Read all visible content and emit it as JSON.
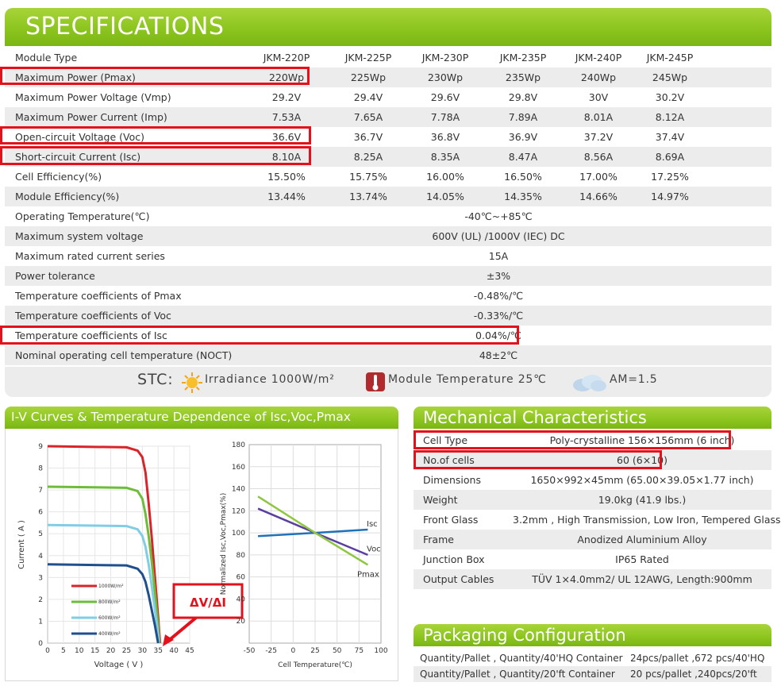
{
  "header": {
    "title": "SPECIFICATIONS"
  },
  "spec": {
    "models": {
      "label": "Module Type",
      "cols": [
        "JKM-220P",
        "JKM-225P",
        "JKM-230P",
        "JKM-235P",
        "JKM-240P",
        "JKM-245P"
      ]
    },
    "rows": [
      {
        "label": "Maximum Power (Pmax)",
        "cols": [
          "220Wp",
          "225Wp",
          "230Wp",
          "235Wp",
          "240Wp",
          "245Wp"
        ]
      },
      {
        "label": "Maximum Power Voltage (Vmp)",
        "cols": [
          "29.2V",
          "29.4V",
          "29.6V",
          "29.8V",
          "30V",
          "30.2V"
        ]
      },
      {
        "label": "Maximum Power Current (Imp)",
        "cols": [
          "7.53A",
          "7.65A",
          "7.78A",
          "7.89A",
          "8.01A",
          "8.12A"
        ]
      },
      {
        "label": "Open-circuit Voltage (Voc)",
        "cols": [
          "36.6V",
          "36.7V",
          "36.8V",
          "36.9V",
          "37.2V",
          "37.4V"
        ]
      },
      {
        "label": "Short-circuit Current (Isc)",
        "cols": [
          "8.10A",
          "8.25A",
          "8.35A",
          "8.47A",
          "8.56A",
          "8.69A"
        ]
      },
      {
        "label": "Cell Efficiency(%)",
        "cols": [
          "15.50%",
          "15.75%",
          "16.00%",
          "16.50%",
          "17.00%",
          "17.25%"
        ]
      },
      {
        "label": "Module Efficiency(%)",
        "cols": [
          "13.44%",
          "13.74%",
          "14.05%",
          "14.35%",
          "14.66%",
          "14.97%"
        ]
      }
    ],
    "merged": [
      {
        "label": "Operating Temperature(℃)",
        "value": "-40℃~+85℃"
      },
      {
        "label": "Maximum system voltage",
        "value": "600V (UL) /1000V (IEC)  DC"
      },
      {
        "label": "Maximum rated current series",
        "value": "15A"
      },
      {
        "label": "Power tolerance",
        "value": "±3%"
      },
      {
        "label": "Temperature coefficients of Pmax",
        "value": "-0.48%/℃"
      },
      {
        "label": "Temperature coefficients of Voc",
        "value": "-0.33%/℃"
      },
      {
        "label": "Temperature coefficients of Isc",
        "value": "0.04%/℃"
      },
      {
        "label": "Nominal operating cell temperature  (NOCT)",
        "value": "48±2℃"
      }
    ]
  },
  "stc": {
    "prefix": "STC:",
    "irradiance": "Irradiance 1000W/m²",
    "module_temp": "Module Temperature 25℃",
    "am": "AM=1.5"
  },
  "iv": {
    "title": "I-V Curves & Temperature Dependence of Isc,Voc,Pmax",
    "xlabel": "Voltage ( V )",
    "ylabel": "Current ( A )",
    "x_ticks": [
      "0",
      "5",
      "10",
      "15",
      "20",
      "25",
      "30",
      "35",
      "40",
      "45"
    ],
    "y_ticks": [
      "0",
      "1",
      "2",
      "3",
      "4",
      "5",
      "6",
      "7",
      "8",
      "9"
    ],
    "legend": [
      "1000W/m²",
      "800W/m²",
      "600W/m²",
      "400W/m²"
    ],
    "annotation": "ΔV/ΔI",
    "colors": {
      "s1000": "#d8252c",
      "s800": "#6dbd3a",
      "s600": "#82cde6",
      "s400": "#1f4f8f"
    }
  },
  "temp_chart": {
    "ylabel": "Normalized Isc,Voc,Pmax(%)",
    "xlabel": "Cell Temperature(℃)",
    "x_ticks": [
      "-50",
      "-25",
      "0",
      "25",
      "50",
      "75",
      "100"
    ],
    "y_ticks": [
      "20",
      "40",
      "60",
      "80",
      "100",
      "120",
      "140",
      "160",
      "180"
    ],
    "series_labels": {
      "isc": "Isc",
      "voc": "Voc",
      "pmax": "Pmax"
    }
  },
  "chart_data": [
    {
      "type": "line",
      "title": "",
      "xlabel": "Voltage ( V )",
      "ylabel": "Current ( A )",
      "xlim": [
        0,
        45
      ],
      "ylim": [
        0,
        9
      ],
      "series": [
        {
          "name": "1000W/m²",
          "x": [
            0,
            25,
            28.5,
            30,
            31,
            32,
            33,
            34,
            35,
            35.6
          ],
          "values": [
            9.0,
            8.95,
            8.8,
            8.5,
            7.8,
            6.4,
            4.8,
            3.0,
            1.2,
            0
          ]
        },
        {
          "name": "800W/m²",
          "x": [
            0,
            25,
            28.5,
            30,
            31,
            32,
            33,
            34,
            35,
            35.4
          ],
          "values": [
            7.15,
            7.1,
            6.95,
            6.6,
            5.9,
            4.9,
            3.7,
            2.3,
            0.8,
            0
          ]
        },
        {
          "name": "600W/m²",
          "x": [
            0,
            25,
            28.5,
            30,
            31,
            32,
            33,
            34,
            35,
            35.2
          ],
          "values": [
            5.4,
            5.35,
            5.2,
            4.9,
            4.4,
            3.6,
            2.6,
            1.5,
            0.4,
            0
          ]
        },
        {
          "name": "400W/m²",
          "x": [
            0,
            25,
            28.5,
            30,
            31,
            32,
            33,
            34,
            35
          ],
          "values": [
            3.6,
            3.55,
            3.4,
            3.15,
            2.8,
            2.2,
            1.5,
            0.8,
            0
          ]
        }
      ]
    },
    {
      "type": "line",
      "title": "",
      "xlabel": "Cell Temperature(℃)",
      "ylabel": "Normalized Isc,Voc,Pmax(%)",
      "xlim": [
        -50,
        100
      ],
      "ylim": [
        0,
        180
      ],
      "series": [
        {
          "name": "Isc",
          "x": [
            -40,
            25,
            85
          ],
          "values": [
            97,
            100,
            103
          ]
        },
        {
          "name": "Voc",
          "x": [
            -40,
            25,
            85
          ],
          "values": [
            122,
            100,
            80
          ]
        },
        {
          "name": "Pmax",
          "x": [
            -40,
            25,
            85
          ],
          "values": [
            133,
            100,
            71
          ]
        }
      ]
    }
  ],
  "mechanical": {
    "title": "Mechanical Characteristics",
    "rows": [
      {
        "label": "Cell Type",
        "value": "Poly-crystalline  156×156mm (6 inch)"
      },
      {
        "label": "No.of cells",
        "value": "60 (6×10)"
      },
      {
        "label": "Dimensions",
        "value": "1650×992×45mm (65.00×39.05×1.77 inch)"
      },
      {
        "label": "Weight",
        "value": "19.0kg (41.9 lbs.)"
      },
      {
        "label": "Front Glass",
        "value": "3.2mm , High Transmission, Low Iron, Tempered Glass"
      },
      {
        "label": "Frame",
        "value": "Anodized Aluminium Alloy"
      },
      {
        "label": "Junction Box",
        "value": "IP65 Rated"
      },
      {
        "label": "Output Cables",
        "value": "TÜV 1×4.0mm2/ UL 12AWG, Length:900mm"
      }
    ]
  },
  "packaging": {
    "title": "Packaging Configuration",
    "rows": [
      {
        "label": "Quantity/Pallet , Quantity/40'HQ Container",
        "value": "24pcs/pallet ,672 pcs/40'HQ"
      },
      {
        "label": "Quantity/Pallet , Quantity/20'ft Container",
        "value": "20 pcs/pallet ,240pcs/20'ft"
      }
    ]
  }
}
